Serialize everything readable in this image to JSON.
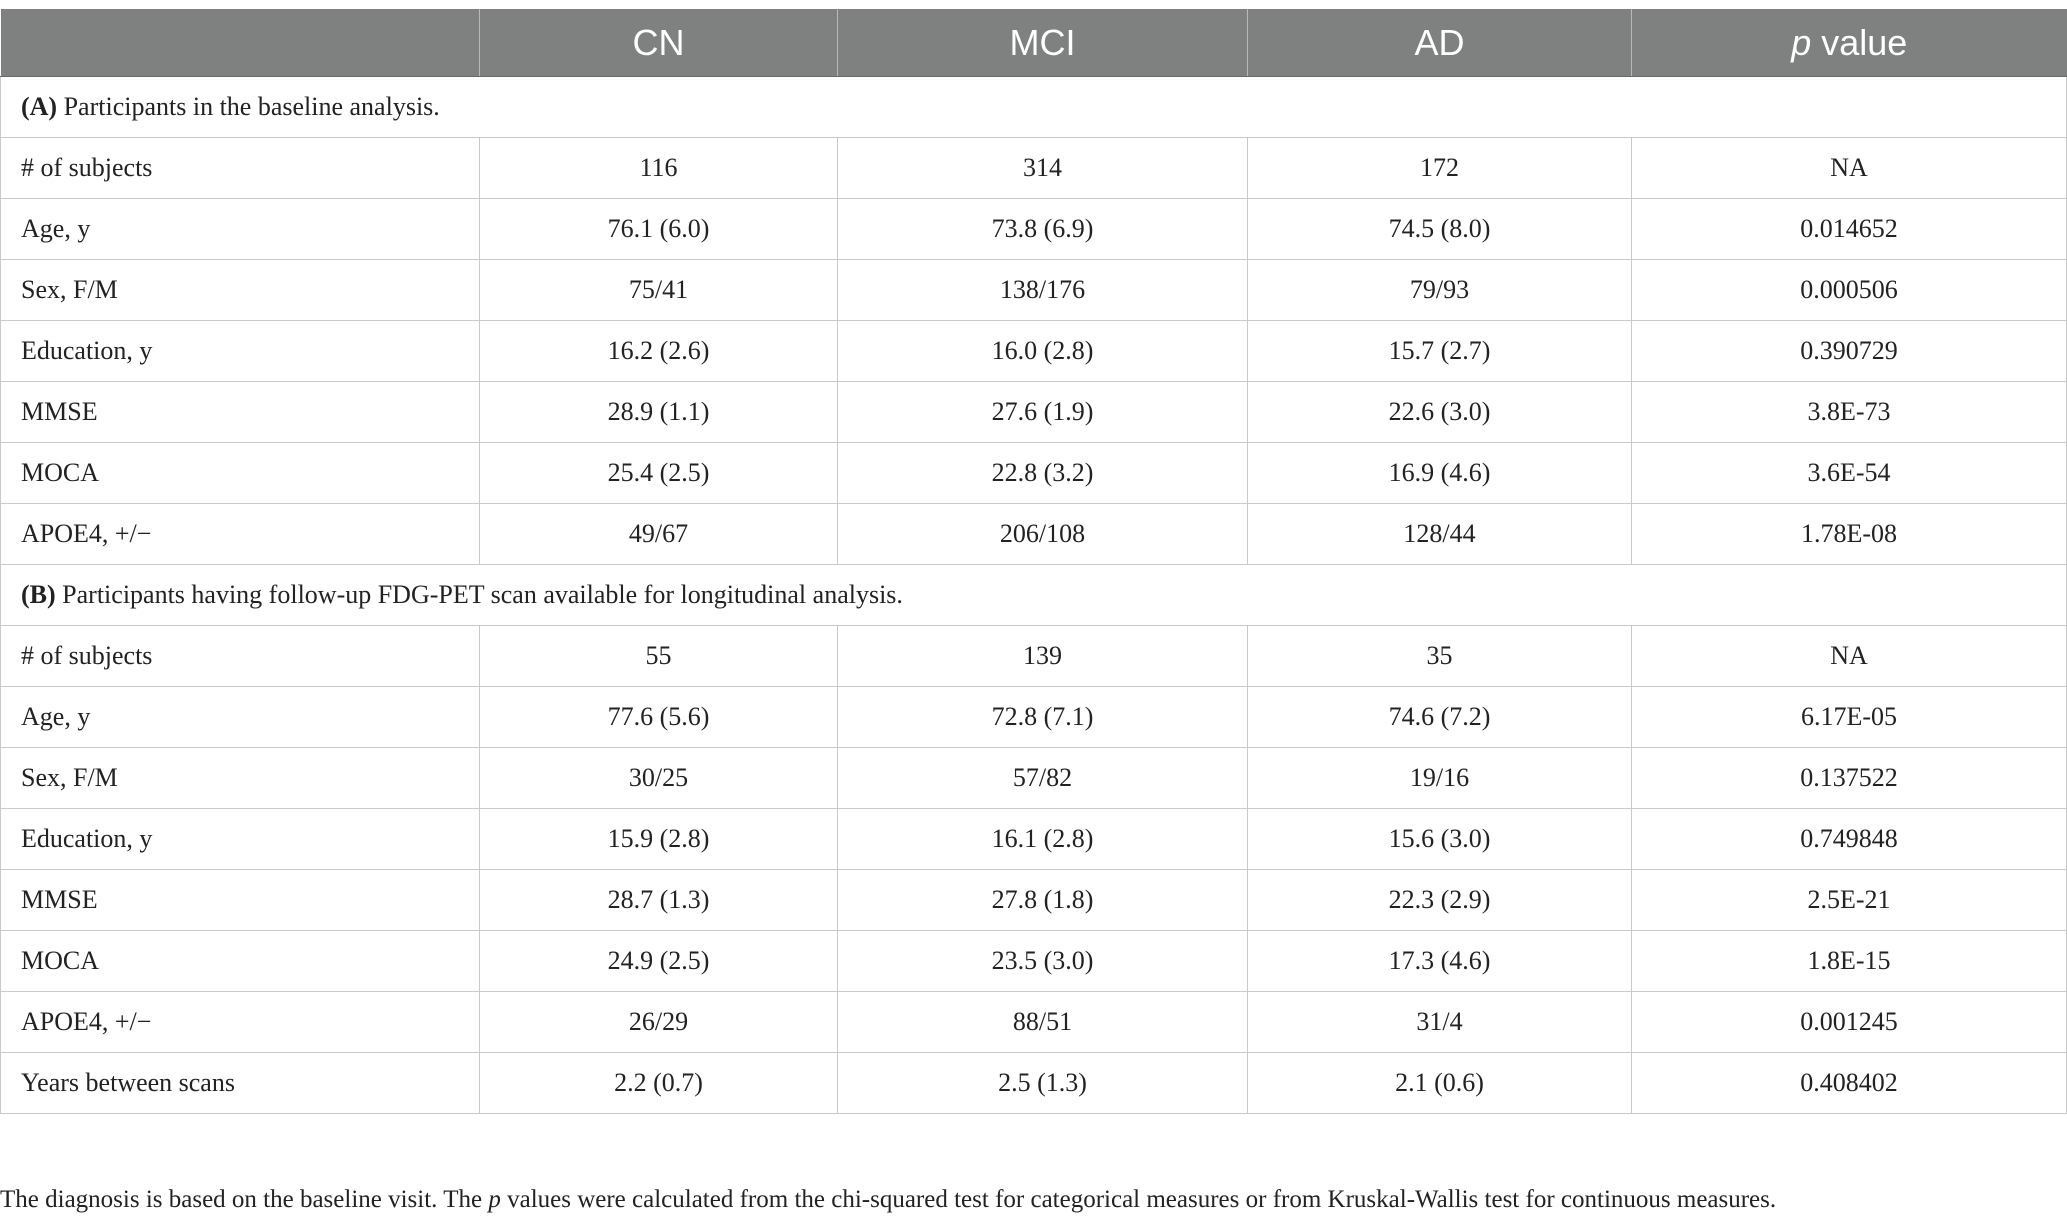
{
  "header": {
    "col0": "",
    "col1": "CN",
    "col2": "MCI",
    "col3": "AD",
    "col4_italic": "p",
    "col4_rest": " value"
  },
  "section_a": {
    "tag": "(A)",
    "title": " Participants in the baseline analysis.",
    "rows": [
      [
        "# of subjects",
        "116",
        "314",
        "172",
        "NA"
      ],
      [
        "Age, y",
        "76.1 (6.0)",
        "73.8 (6.9)",
        "74.5 (8.0)",
        "0.014652"
      ],
      [
        "Sex, F/M",
        "75/41",
        "138/176",
        "79/93",
        "0.000506"
      ],
      [
        "Education, y",
        "16.2 (2.6)",
        "16.0 (2.8)",
        "15.7 (2.7)",
        "0.390729"
      ],
      [
        "MMSE",
        "28.9 (1.1)",
        "27.6 (1.9)",
        "22.6 (3.0)",
        "3.8E-73"
      ],
      [
        "MOCA",
        "25.4 (2.5)",
        "22.8 (3.2)",
        "16.9 (4.6)",
        "3.6E-54"
      ],
      [
        "APOE4, +/−",
        "49/67",
        "206/108",
        "128/44",
        "1.78E-08"
      ]
    ]
  },
  "section_b": {
    "tag": "(B)",
    "title": " Participants having follow-up FDG-PET scan available for longitudinal analysis.",
    "rows": [
      [
        "# of subjects",
        "55",
        "139",
        "35",
        "NA"
      ],
      [
        "Age, y",
        "77.6 (5.6)",
        "72.8 (7.1)",
        "74.6 (7.2)",
        "6.17E-05"
      ],
      [
        "Sex, F/M",
        "30/25",
        "57/82",
        "19/16",
        "0.137522"
      ],
      [
        "Education, y",
        "15.9 (2.8)",
        "16.1 (2.8)",
        "15.6 (3.0)",
        "0.749848"
      ],
      [
        "MMSE",
        "28.7 (1.3)",
        "27.8 (1.8)",
        "22.3 (2.9)",
        "2.5E-21"
      ],
      [
        "MOCA",
        "24.9 (2.5)",
        "23.5 (3.0)",
        "17.3 (4.6)",
        "1.8E-15"
      ],
      [
        "APOE4, +/−",
        "26/29",
        "88/51",
        "31/4",
        "0.001245"
      ],
      [
        "Years between scans",
        "2.2 (0.7)",
        "2.5 (1.3)",
        "2.1 (0.6)",
        "0.408402"
      ]
    ]
  },
  "footnote": {
    "part1": "The diagnosis is based on the baseline visit. The ",
    "italic": "p",
    "part2": " values were calculated from the chi-squared test for categorical measures or from Kruskal-Wallis test for continuous measures."
  }
}
